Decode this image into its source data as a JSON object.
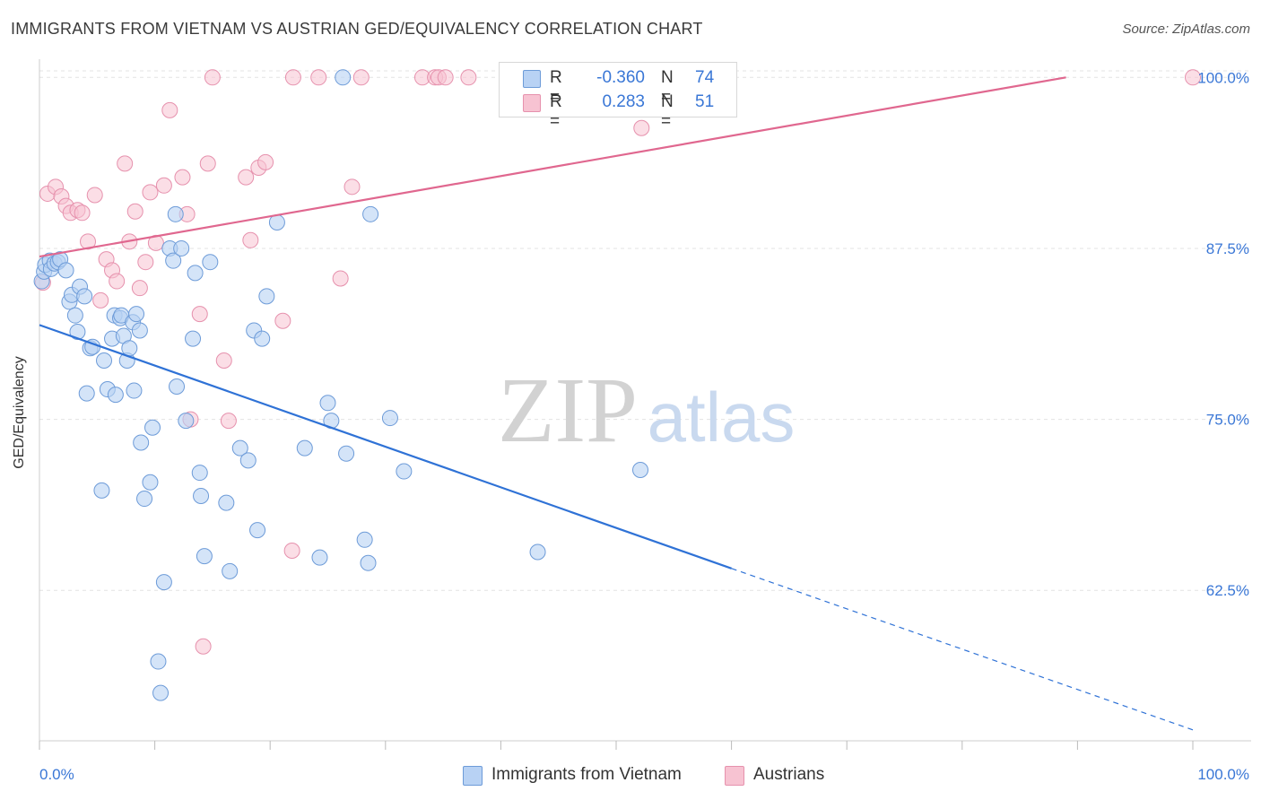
{
  "header": {
    "title": "IMMIGRANTS FROM VIETNAM VS AUSTRIAN GED/EQUIVALENCY CORRELATION CHART",
    "source": "Source: ZipAtlas.com"
  },
  "watermark": {
    "zip": "ZIP",
    "atlas": "atlas"
  },
  "legend": {
    "rows": [
      {
        "r_label": "R =",
        "r_value": "-0.360",
        "n_label": "N =",
        "n_value": "74"
      },
      {
        "r_label": "R =",
        "r_value": "0.283",
        "n_label": "N =",
        "n_value": "51"
      }
    ]
  },
  "bottom_legend": {
    "vietnam": "Immigrants from Vietnam",
    "austrians": "Austrians"
  },
  "colors": {
    "blue_fill": "#b8d2f4",
    "blue_stroke": "#6d9bd8",
    "blue_line": "#2f72d6",
    "pink_fill": "#f7c3d2",
    "pink_stroke": "#e691ad",
    "pink_line": "#e0678f",
    "axis_text": "#3a77d6",
    "grid": "#e3e3e3"
  },
  "chart_data": {
    "type": "scatter",
    "title": "IMMIGRANTS FROM VIETNAM VS AUSTRIAN GED/EQUIVALENCY CORRELATION CHART",
    "xlabel": "",
    "ylabel": "GED/Equivalency",
    "xlim": [
      0,
      100
    ],
    "ylim": [
      51.5,
      101.2
    ],
    "x_tick_labels": [
      "0.0%",
      "100.0%"
    ],
    "y_ticks": [
      62.5,
      75.0,
      87.5,
      100.0
    ],
    "y_tick_labels": [
      "62.5%",
      "75.0%",
      "87.5%",
      "100.0%"
    ],
    "grid": true,
    "legend_position": "top-center",
    "series": [
      {
        "name": "Immigrants from Vietnam",
        "R": -0.36,
        "N": 74,
        "trend": {
          "x": [
            0,
            60
          ],
          "y": [
            81.9,
            64.1
          ],
          "dashed_to": [
            100,
            52.3
          ]
        },
        "points": [
          [
            0.2,
            85.1
          ],
          [
            0.4,
            85.8
          ],
          [
            0.5,
            86.3
          ],
          [
            0.9,
            86.6
          ],
          [
            1.0,
            86.0
          ],
          [
            1.3,
            86.4
          ],
          [
            1.6,
            86.5
          ],
          [
            1.8,
            86.7
          ],
          [
            2.3,
            85.9
          ],
          [
            2.6,
            83.6
          ],
          [
            2.8,
            84.1
          ],
          [
            3.1,
            82.6
          ],
          [
            3.3,
            81.4
          ],
          [
            3.5,
            84.7
          ],
          [
            3.9,
            84.0
          ],
          [
            4.1,
            76.9
          ],
          [
            4.4,
            80.2
          ],
          [
            4.6,
            80.3
          ],
          [
            5.6,
            79.3
          ],
          [
            5.4,
            69.8
          ],
          [
            5.9,
            77.2
          ],
          [
            6.3,
            80.9
          ],
          [
            6.5,
            82.6
          ],
          [
            6.6,
            76.8
          ],
          [
            7.0,
            82.4
          ],
          [
            7.1,
            82.6
          ],
          [
            7.3,
            81.1
          ],
          [
            7.6,
            79.3
          ],
          [
            7.8,
            80.2
          ],
          [
            8.1,
            82.1
          ],
          [
            8.2,
            77.1
          ],
          [
            8.4,
            82.7
          ],
          [
            8.7,
            81.5
          ],
          [
            8.8,
            73.3
          ],
          [
            9.1,
            69.2
          ],
          [
            9.6,
            70.4
          ],
          [
            9.8,
            74.4
          ],
          [
            10.3,
            57.3
          ],
          [
            10.5,
            55.0
          ],
          [
            10.8,
            63.1
          ],
          [
            11.3,
            87.5
          ],
          [
            11.6,
            86.6
          ],
          [
            11.8,
            90.0
          ],
          [
            11.9,
            77.4
          ],
          [
            12.3,
            87.5
          ],
          [
            12.7,
            74.9
          ],
          [
            13.3,
            80.9
          ],
          [
            13.5,
            85.7
          ],
          [
            13.9,
            71.1
          ],
          [
            14.0,
            69.4
          ],
          [
            14.3,
            65.0
          ],
          [
            14.8,
            86.5
          ],
          [
            16.2,
            68.9
          ],
          [
            16.5,
            63.9
          ],
          [
            17.4,
            72.9
          ],
          [
            18.1,
            72.0
          ],
          [
            18.6,
            81.5
          ],
          [
            18.9,
            66.9
          ],
          [
            19.3,
            80.9
          ],
          [
            19.7,
            84.0
          ],
          [
            20.6,
            89.4
          ],
          [
            23.0,
            72.9
          ],
          [
            24.3,
            64.9
          ],
          [
            25.0,
            76.2
          ],
          [
            25.3,
            74.9
          ],
          [
            26.3,
            100.0
          ],
          [
            26.6,
            72.5
          ],
          [
            28.2,
            66.2
          ],
          [
            28.5,
            64.5
          ],
          [
            28.7,
            90.0
          ],
          [
            30.4,
            75.1
          ],
          [
            31.6,
            71.2
          ],
          [
            43.2,
            65.3
          ],
          [
            52.1,
            71.3
          ]
        ]
      },
      {
        "name": "Austrians",
        "R": 0.283,
        "N": 51,
        "trend": {
          "x": [
            0,
            89
          ],
          "y": [
            86.9,
            100.0
          ]
        },
        "points": [
          [
            0.3,
            85.0
          ],
          [
            0.7,
            91.5
          ],
          [
            1.4,
            92.0
          ],
          [
            1.9,
            91.3
          ],
          [
            2.3,
            90.6
          ],
          [
            2.7,
            90.1
          ],
          [
            3.3,
            90.3
          ],
          [
            3.7,
            90.1
          ],
          [
            4.2,
            88.0
          ],
          [
            4.8,
            91.4
          ],
          [
            5.3,
            83.7
          ],
          [
            5.8,
            86.7
          ],
          [
            6.3,
            85.9
          ],
          [
            6.7,
            85.1
          ],
          [
            7.4,
            93.7
          ],
          [
            7.8,
            88.0
          ],
          [
            8.3,
            90.2
          ],
          [
            8.7,
            84.6
          ],
          [
            9.2,
            86.5
          ],
          [
            9.6,
            91.6
          ],
          [
            10.1,
            87.9
          ],
          [
            10.8,
            92.1
          ],
          [
            11.3,
            97.6
          ],
          [
            12.4,
            92.7
          ],
          [
            12.8,
            90.0
          ],
          [
            13.1,
            75.0
          ],
          [
            13.9,
            82.7
          ],
          [
            14.2,
            58.4
          ],
          [
            14.6,
            93.7
          ],
          [
            15.0,
            100.0
          ],
          [
            16.0,
            79.3
          ],
          [
            16.4,
            74.9
          ],
          [
            17.9,
            92.7
          ],
          [
            18.3,
            88.1
          ],
          [
            19.0,
            93.4
          ],
          [
            19.6,
            93.8
          ],
          [
            21.1,
            82.2
          ],
          [
            21.9,
            65.4
          ],
          [
            22.0,
            100.0
          ],
          [
            24.2,
            100.0
          ],
          [
            26.1,
            85.3
          ],
          [
            27.1,
            92.0
          ],
          [
            27.9,
            100.0
          ],
          [
            33.2,
            100.0
          ],
          [
            34.3,
            100.0
          ],
          [
            34.6,
            100.0
          ],
          [
            35.2,
            100.0
          ],
          [
            37.2,
            100.0
          ],
          [
            41.3,
            100.0
          ],
          [
            52.2,
            96.3
          ],
          [
            100.0,
            100.0
          ]
        ]
      }
    ]
  }
}
